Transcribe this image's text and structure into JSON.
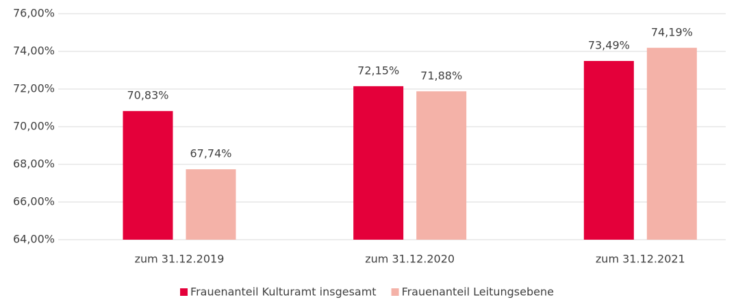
{
  "chart_data": {
    "type": "bar",
    "categories": [
      "zum 31.12.2019",
      "zum 31.12.2020",
      "zum 31.12.2021"
    ],
    "series": [
      {
        "name": "Frauenanteil Kulturamt insgesamt",
        "color": "#e4003a",
        "values": [
          70.83,
          72.15,
          73.49
        ],
        "value_labels": [
          "70,83%",
          "72,15%",
          "73,49%"
        ]
      },
      {
        "name": "Frauenanteil Leitungsebene",
        "color": "#f4b2a8",
        "values": [
          67.74,
          71.88,
          74.19
        ],
        "value_labels": [
          "67,74%",
          "71,88%",
          "74,19%"
        ]
      }
    ],
    "ylim": [
      64,
      76
    ],
    "yticks": [
      {
        "value": 64,
        "label": "64,00%"
      },
      {
        "value": 66,
        "label": "66,00%"
      },
      {
        "value": 68,
        "label": "68,00%"
      },
      {
        "value": 70,
        "label": "70,00%"
      },
      {
        "value": 72,
        "label": "72,00%"
      },
      {
        "value": 74,
        "label": "74,00%"
      },
      {
        "value": 76,
        "label": "76,00%"
      }
    ],
    "grid": true,
    "legend": "bottom"
  }
}
